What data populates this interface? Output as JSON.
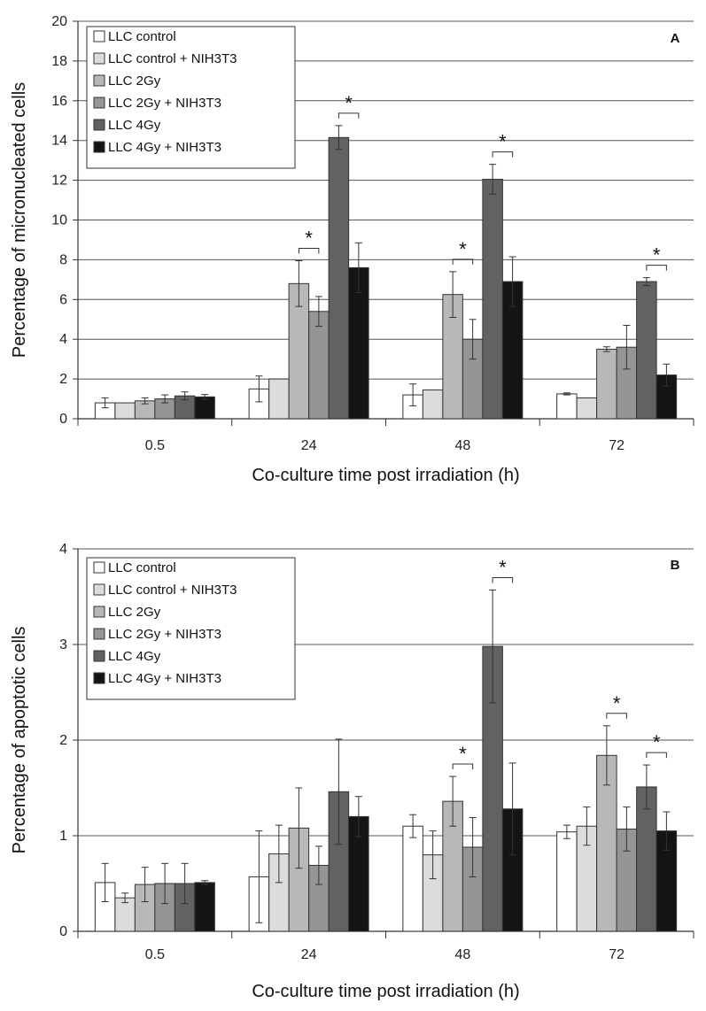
{
  "chart_data": [
    {
      "type": "bar",
      "panel_label": "A",
      "xlabel": "Co-culture time post irradiation (h)",
      "ylabel": "Percentage of micronucleated cells",
      "categories": [
        "0.5",
        "24",
        "48",
        "72"
      ],
      "ylim": [
        0,
        20
      ],
      "yticks": [
        "0",
        "2",
        "4",
        "6",
        "8",
        "10",
        "12",
        "14",
        "16",
        "18",
        "20"
      ],
      "grid": true,
      "legend_position": "top-left",
      "series": [
        {
          "name": "LLC control",
          "color": "#ffffff",
          "values": [
            0.8,
            1.5,
            1.2,
            1.25
          ],
          "errors": [
            0.25,
            0.65,
            0.55,
            0.05
          ]
        },
        {
          "name": "LLC control + NIH3T3",
          "color": "#dcdcdc",
          "values": [
            0.8,
            2.0,
            1.45,
            1.05
          ],
          "errors": [
            0,
            0,
            0,
            0
          ]
        },
        {
          "name": "LLC 2Gy",
          "color": "#b8b8b8",
          "values": [
            0.9,
            6.8,
            6.25,
            3.5
          ],
          "errors": [
            0.15,
            1.15,
            1.15,
            0.12
          ]
        },
        {
          "name": "LLC 2Gy + NIH3T3",
          "color": "#959595",
          "values": [
            1.0,
            5.4,
            4.0,
            3.6
          ],
          "errors": [
            0.2,
            0.75,
            1.0,
            1.1
          ]
        },
        {
          "name": "LLC 4Gy",
          "color": "#626262",
          "values": [
            1.15,
            14.15,
            12.05,
            6.9
          ],
          "errors": [
            0.2,
            0.6,
            0.75,
            0.2
          ]
        },
        {
          "name": "LLC 4Gy + NIH3T3",
          "color": "#141414",
          "values": [
            1.1,
            7.6,
            6.9,
            2.2
          ],
          "errors": [
            0.12,
            1.25,
            1.25,
            0.55
          ]
        }
      ],
      "significance": [
        {
          "category": 1,
          "series": [
            2,
            3
          ],
          "label": "*"
        },
        {
          "category": 1,
          "series": [
            4,
            5
          ],
          "label": "*"
        },
        {
          "category": 2,
          "series": [
            2,
            3
          ],
          "label": "*"
        },
        {
          "category": 2,
          "series": [
            4,
            5
          ],
          "label": "*"
        },
        {
          "category": 3,
          "series": [
            4,
            5
          ],
          "label": "*"
        }
      ]
    },
    {
      "type": "bar",
      "panel_label": "B",
      "xlabel": "Co-culture time post irradiation (h)",
      "ylabel": "Percentage of apoptotic cells",
      "categories": [
        "0.5",
        "24",
        "48",
        "72"
      ],
      "ylim": [
        0,
        4
      ],
      "yticks": [
        "0",
        "1",
        "2",
        "3",
        "4"
      ],
      "grid": true,
      "legend_position": "top-left",
      "series": [
        {
          "name": "LLC control",
          "color": "#ffffff",
          "values": [
            0.51,
            0.57,
            1.1,
            1.04
          ],
          "errors": [
            0.2,
            0.48,
            0.12,
            0.07
          ]
        },
        {
          "name": "LLC control + NIH3T3",
          "color": "#dcdcdc",
          "values": [
            0.35,
            0.81,
            0.8,
            1.1
          ],
          "errors": [
            0.05,
            0.3,
            0.25,
            0.2
          ]
        },
        {
          "name": "LLC 2Gy",
          "color": "#b8b8b8",
          "values": [
            0.49,
            1.08,
            1.36,
            1.84
          ],
          "errors": [
            0.18,
            0.42,
            0.26,
            0.31
          ]
        },
        {
          "name": "LLC 2Gy + NIH3T3",
          "color": "#959595",
          "values": [
            0.5,
            0.69,
            0.88,
            1.07
          ],
          "errors": [
            0.21,
            0.2,
            0.31,
            0.23
          ]
        },
        {
          "name": "LLC 4Gy",
          "color": "#626262",
          "values": [
            0.5,
            1.46,
            2.98,
            1.51
          ],
          "errors": [
            0.21,
            0.55,
            0.59,
            0.23
          ]
        },
        {
          "name": "LLC 4Gy + NIH3T3",
          "color": "#141414",
          "values": [
            0.51,
            1.2,
            1.28,
            1.05
          ],
          "errors": [
            0.02,
            0.21,
            0.48,
            0.2
          ]
        }
      ],
      "significance": [
        {
          "category": 2,
          "series": [
            2,
            3
          ],
          "label": "*"
        },
        {
          "category": 2,
          "series": [
            4,
            5
          ],
          "label": "*"
        },
        {
          "category": 3,
          "series": [
            2,
            3
          ],
          "label": "*"
        },
        {
          "category": 3,
          "series": [
            4,
            5
          ],
          "label": "*"
        }
      ]
    }
  ]
}
